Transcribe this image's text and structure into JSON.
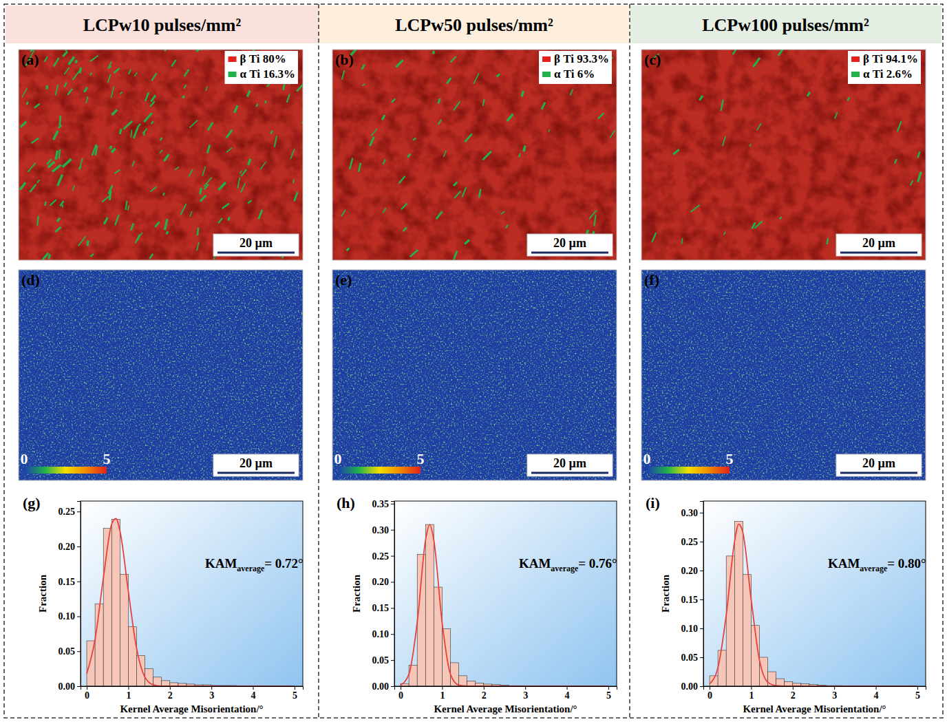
{
  "figure": {
    "columns": [
      {
        "title": "LCPw10 pulses/mm²",
        "phase_map": {
          "letter": "(a)",
          "phases": [
            {
              "label": "β Ti 80%",
              "value": 80,
              "color": "#e3201c"
            },
            {
              "label": "α Ti 16.3%",
              "value": 16.3,
              "color": "#22b14c"
            }
          ],
          "scale_bar": "20 µm"
        },
        "kam_map": {
          "letter": "(d)",
          "colorbar": {
            "range": [
              0,
              5
            ],
            "ticks": [
              0,
              5
            ]
          },
          "scale_bar": "20 µm"
        }
      },
      {
        "title": "LCPw50 pulses/mm²",
        "phase_map": {
          "letter": "(b)",
          "phases": [
            {
              "label": "β Ti 93.3%",
              "value": 93.3,
              "color": "#e3201c"
            },
            {
              "label": "α Ti 6%",
              "value": 6,
              "color": "#22b14c"
            }
          ],
          "scale_bar": "20 µm"
        },
        "kam_map": {
          "letter": "(e)",
          "colorbar": {
            "range": [
              0,
              5
            ],
            "ticks": [
              0,
              5
            ]
          },
          "scale_bar": "20 µm"
        }
      },
      {
        "title": "LCPw100 pulses/mm²",
        "phase_map": {
          "letter": "(c)",
          "phases": [
            {
              "label": "β Ti 94.1%",
              "value": 94.1,
              "color": "#e3201c"
            },
            {
              "label": "α Ti 2.6%",
              "value": 2.6,
              "color": "#22b14c"
            }
          ],
          "scale_bar": "20 µm"
        },
        "kam_map": {
          "letter": "(f)",
          "colorbar": {
            "range": [
              0,
              5
            ],
            "ticks": [
              0,
              5
            ]
          },
          "scale_bar": "20 µm"
        }
      }
    ]
  },
  "chart_data": [
    {
      "type": "histogram",
      "letter": "(g)",
      "xlabel": "Kernel Average Misorientation/°",
      "ylabel": "Fraction",
      "bins": [
        0,
        0.2,
        0.4,
        0.6,
        0.8,
        1,
        1.2,
        1.4,
        1.6,
        1.8,
        2,
        2.2,
        2.4,
        2.6,
        2.8,
        3,
        3.2,
        3.4,
        3.6,
        3.8,
        4,
        4.2,
        4.4,
        4.6,
        4.8,
        5
      ],
      "values": [
        0.065,
        0.118,
        0.226,
        0.239,
        0.16,
        0.085,
        0.044,
        0.025,
        0.013,
        0.008,
        0.005,
        0.004,
        0.003,
        0.002,
        0.002,
        0.001,
        0.001,
        0.001,
        0,
        0,
        0,
        0,
        0,
        0,
        0
      ],
      "color": "#f6c7b9",
      "fit": {
        "color": "#e8413c",
        "x": [
          0,
          0.2,
          0.4,
          0.6,
          0.7,
          0.8,
          1,
          1.2,
          1.4,
          1.6,
          1.8,
          2,
          3,
          4,
          5
        ],
        "values": [
          0.018,
          0.067,
          0.155,
          0.232,
          0.24,
          0.222,
          0.136,
          0.054,
          0.013,
          0.002,
          0,
          0,
          0,
          0,
          0
        ]
      },
      "annotation": {
        "text": "KAM",
        "subscript": "average",
        "suffix": "= 0.72°"
      },
      "xlim": [
        -0.15,
        5.2
      ],
      "xticks": [
        0,
        1,
        2,
        3,
        4,
        5
      ],
      "ylim": [
        0,
        0.265
      ],
      "yticks": [
        {
          "value": 0,
          "label": "0.00"
        },
        {
          "value": 0.05,
          "label": "0.05"
        },
        {
          "value": 0.1,
          "label": "0.10"
        },
        {
          "value": 0.15,
          "label": "0.15"
        },
        {
          "value": 0.2,
          "label": "0.20"
        },
        {
          "value": 0.25,
          "label": "0.25"
        }
      ]
    },
    {
      "type": "histogram",
      "letter": "(h)",
      "xlabel": "Kernel Average Misorientation/°",
      "ylabel": "Fraction",
      "bins": [
        0,
        0.2,
        0.4,
        0.6,
        0.8,
        1,
        1.2,
        1.4,
        1.6,
        1.8,
        2,
        2.2,
        2.4,
        2.6,
        2.8,
        3,
        3.2,
        3.4,
        3.6,
        3.8,
        4,
        4.2,
        4.4,
        4.6,
        4.8,
        5
      ],
      "values": [
        0.005,
        0.04,
        0.253,
        0.31,
        0.19,
        0.11,
        0.045,
        0.02,
        0.01,
        0.006,
        0.004,
        0.003,
        0.002,
        0.001,
        0.001,
        0,
        0,
        0,
        0,
        0,
        0,
        0,
        0,
        0,
        0
      ],
      "color": "#f6c7b9",
      "fit": {
        "color": "#e8413c",
        "x": [
          0,
          0.2,
          0.4,
          0.6,
          0.7,
          0.8,
          1,
          1.2,
          1.4,
          1.6,
          1.8,
          2,
          3,
          4,
          5
        ],
        "values": [
          0.002,
          0.023,
          0.122,
          0.28,
          0.31,
          0.28,
          0.122,
          0.023,
          0.002,
          0,
          0,
          0,
          0,
          0,
          0
        ]
      },
      "annotation": {
        "text": "KAM",
        "subscript": "average",
        "suffix": "= 0.76°"
      },
      "xlim": [
        -0.15,
        5.2
      ],
      "xticks": [
        0,
        1,
        2,
        3,
        4,
        5
      ],
      "ylim": [
        0,
        0.355
      ],
      "yticks": [
        {
          "value": 0,
          "label": "0.00"
        },
        {
          "value": 0.05,
          "label": "0.05"
        },
        {
          "value": 0.1,
          "label": "0.10"
        },
        {
          "value": 0.15,
          "label": "0.15"
        },
        {
          "value": 0.2,
          "label": "0.20"
        },
        {
          "value": 0.25,
          "label": "0.25"
        },
        {
          "value": 0.3,
          "label": "0.30"
        },
        {
          "value": 0.35,
          "label": "0.35"
        }
      ]
    },
    {
      "type": "histogram",
      "letter": "(i)",
      "xlabel": "Kernel Average Misorientation/°",
      "ylabel": "Fraction",
      "bins": [
        0,
        0.2,
        0.4,
        0.6,
        0.8,
        1,
        1.2,
        1.4,
        1.6,
        1.8,
        2,
        2.2,
        2.4,
        2.6,
        2.8,
        3,
        3.2,
        3.4,
        3.6,
        3.8,
        4,
        4.2,
        4.4,
        4.6,
        4.8,
        5
      ],
      "values": [
        0.018,
        0.062,
        0.225,
        0.285,
        0.193,
        0.105,
        0.05,
        0.025,
        0.013,
        0.008,
        0.005,
        0.004,
        0.003,
        0.002,
        0.001,
        0.001,
        0,
        0,
        0,
        0,
        0,
        0,
        0,
        0,
        0
      ],
      "color": "#f6c7b9",
      "fit": {
        "color": "#e8413c",
        "x": [
          0,
          0.2,
          0.4,
          0.6,
          0.7,
          0.8,
          1,
          1.2,
          1.4,
          1.6,
          1.8,
          2,
          3,
          4,
          5
        ],
        "values": [
          0.004,
          0.032,
          0.123,
          0.25,
          0.28,
          0.266,
          0.15,
          0.045,
          0.007,
          0.001,
          0,
          0,
          0,
          0,
          0
        ]
      },
      "annotation": {
        "text": "KAM",
        "subscript": "average",
        "suffix": "= 0.80°"
      },
      "xlim": [
        -0.15,
        5.2
      ],
      "xticks": [
        0,
        1,
        2,
        3,
        4,
        5
      ],
      "ylim": [
        0,
        0.32
      ],
      "yticks": [
        {
          "value": 0,
          "label": "0.00"
        },
        {
          "value": 0.05,
          "label": "0.05"
        },
        {
          "value": 0.1,
          "label": "0.10"
        },
        {
          "value": 0.15,
          "label": "0.15"
        },
        {
          "value": 0.2,
          "label": "0.20"
        },
        {
          "value": 0.25,
          "label": "0.25"
        },
        {
          "value": 0.3,
          "label": "0.30"
        }
      ]
    }
  ]
}
